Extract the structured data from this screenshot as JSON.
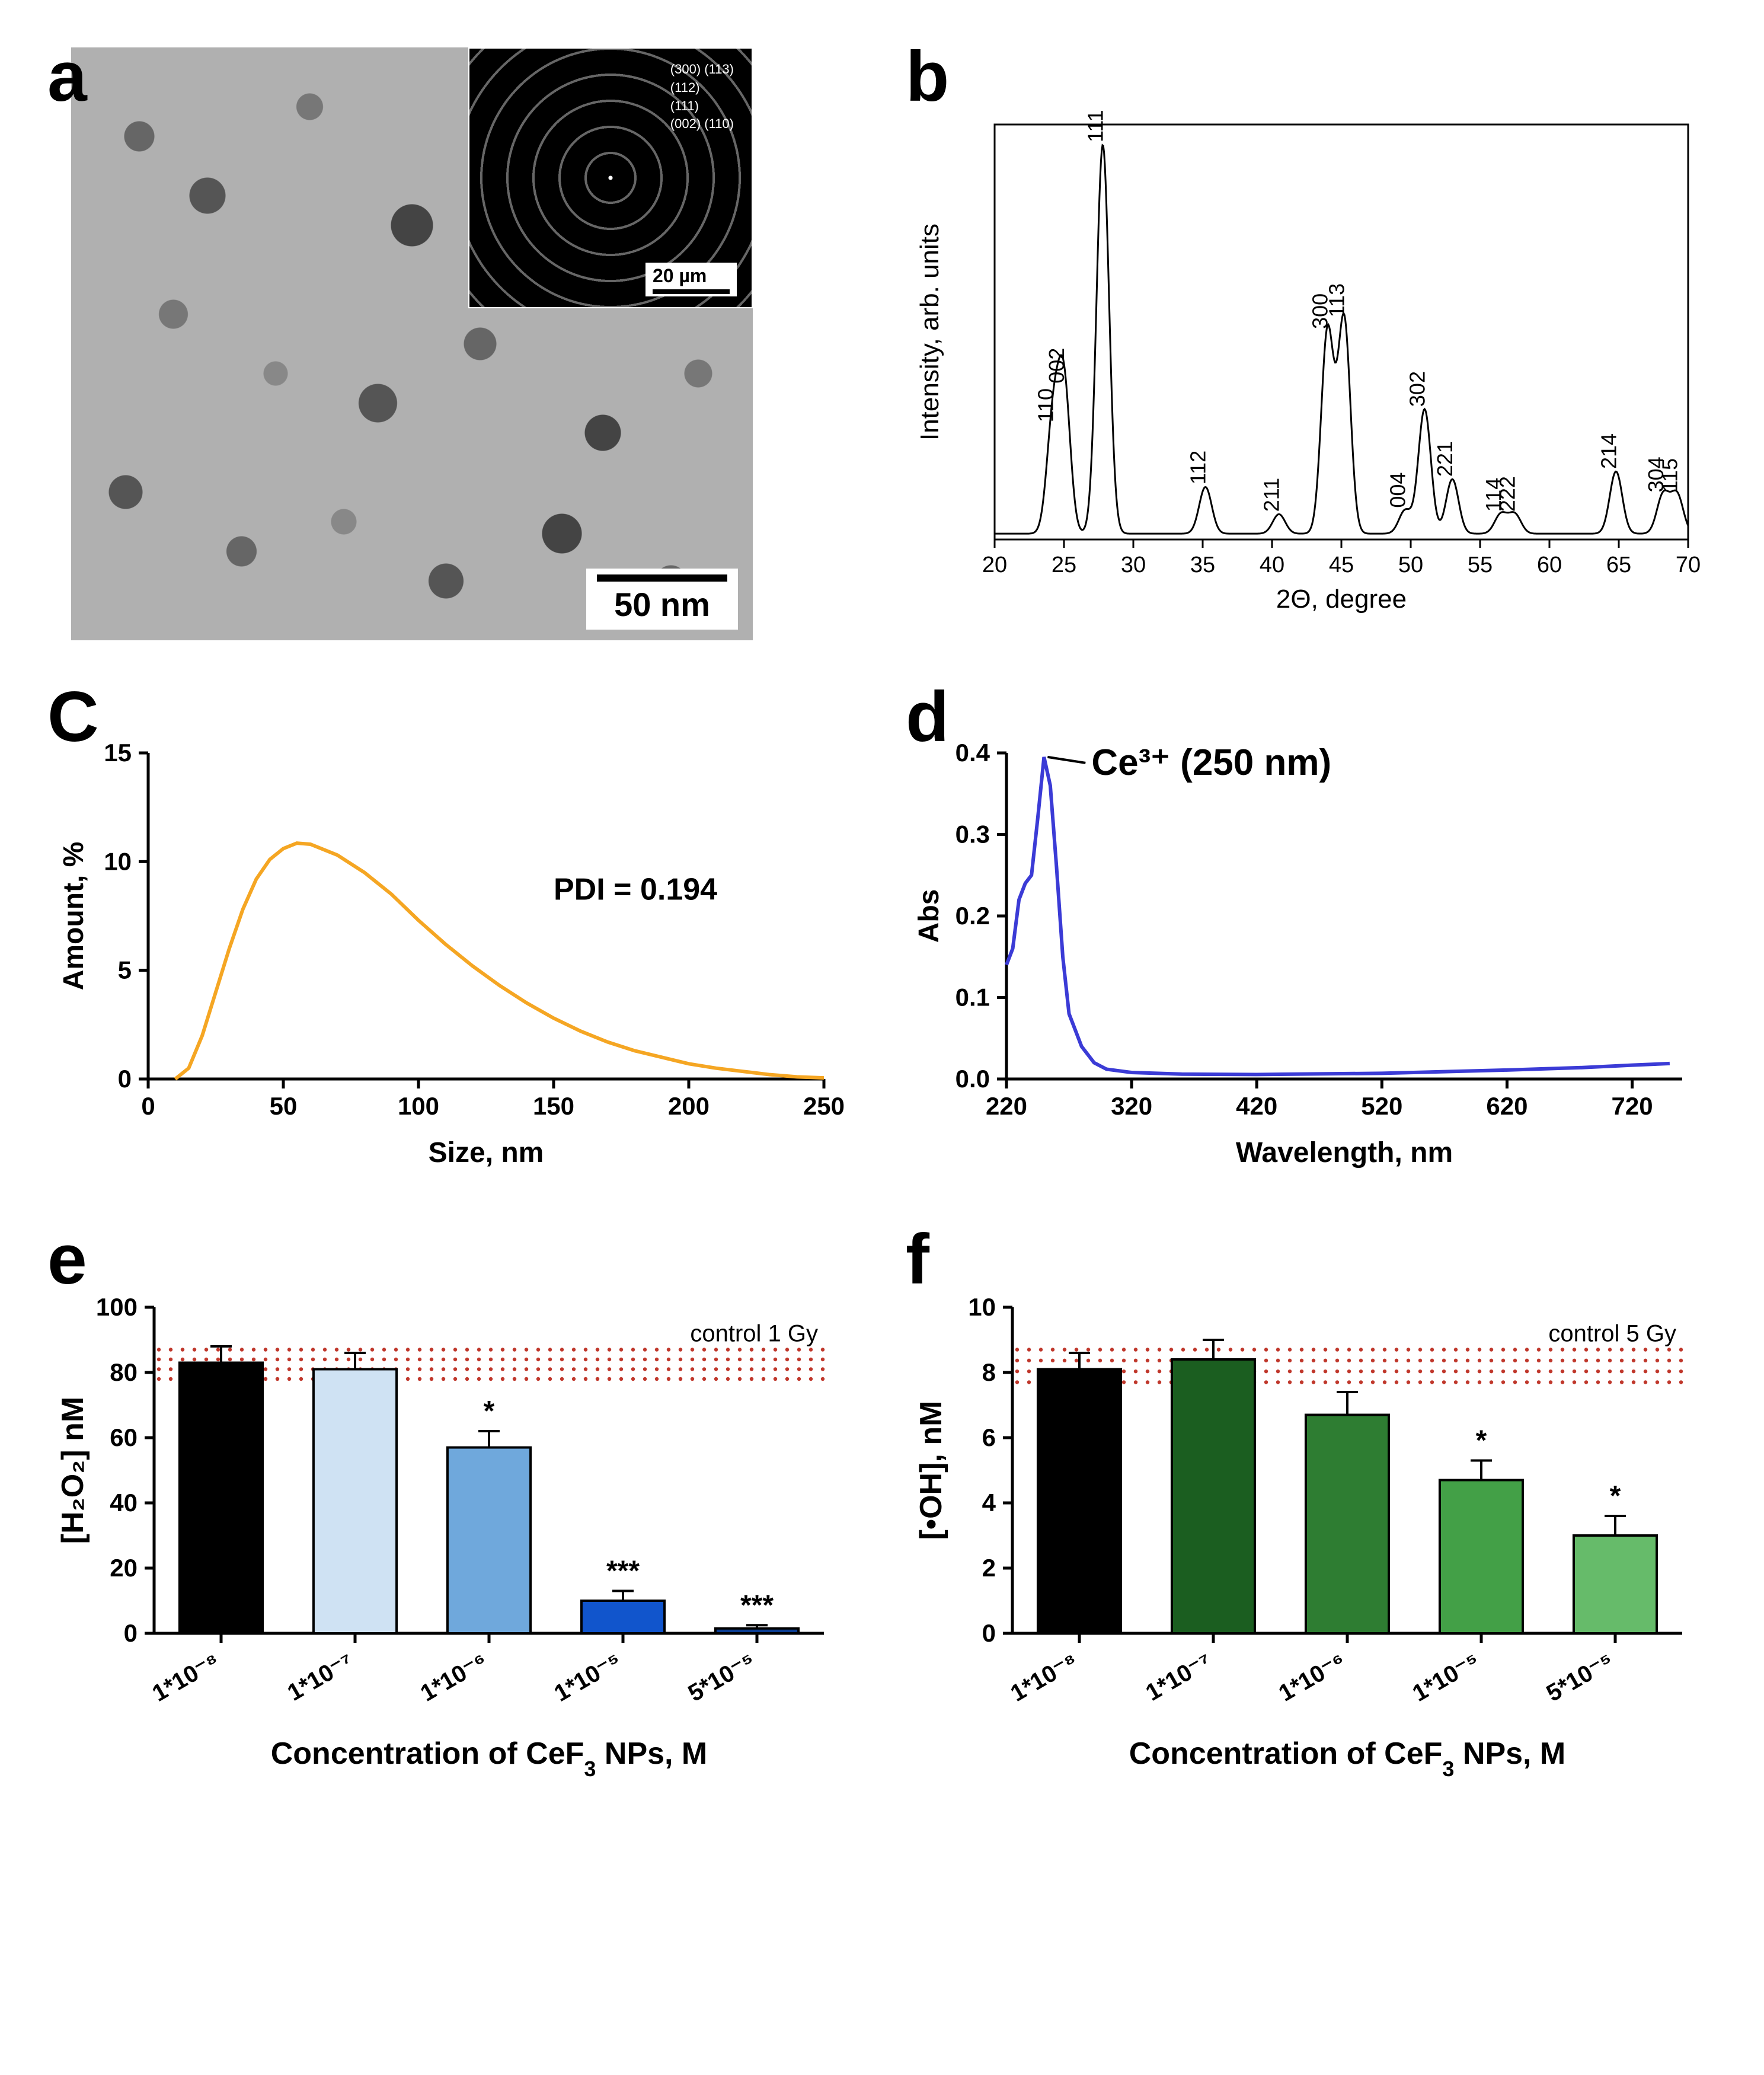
{
  "panels": {
    "a": {
      "label": "a",
      "scalebar_main": "50 nm",
      "scalebar_inset": "20 µm",
      "inset_indices": [
        "(300) (113)",
        "(112)",
        "(111)",
        "(002) (110)"
      ]
    },
    "b": {
      "label": "b",
      "type": "xrd",
      "xlabel": "2Θ, degree",
      "ylabel": "Intensity, arb. units",
      "xlim": [
        20,
        70
      ],
      "xticks": [
        20,
        25,
        30,
        35,
        40,
        45,
        50,
        55,
        60,
        65,
        70
      ],
      "line_color": "#000000",
      "line_width": 3,
      "background": "#ffffff",
      "label_fontsize": 44,
      "tick_fontsize": 38,
      "peak_label_fontsize": 36,
      "peaks": [
        {
          "x": 24.2,
          "h": 0.28,
          "label": "110"
        },
        {
          "x": 25.0,
          "h": 0.38,
          "label": "002"
        },
        {
          "x": 27.8,
          "h": 1.0,
          "label": "111"
        },
        {
          "x": 35.2,
          "h": 0.12,
          "label": "112"
        },
        {
          "x": 40.5,
          "h": 0.05,
          "label": "211"
        },
        {
          "x": 44.0,
          "h": 0.52,
          "label": "300"
        },
        {
          "x": 45.2,
          "h": 0.55,
          "label": "113"
        },
        {
          "x": 49.6,
          "h": 0.06,
          "label": "004"
        },
        {
          "x": 51.0,
          "h": 0.32,
          "label": "302"
        },
        {
          "x": 53.0,
          "h": 0.14,
          "label": "221"
        },
        {
          "x": 56.5,
          "h": 0.05,
          "label": "114"
        },
        {
          "x": 57.5,
          "h": 0.05,
          "label": "222"
        },
        {
          "x": 64.8,
          "h": 0.16,
          "label": "214"
        },
        {
          "x": 68.2,
          "h": 0.1,
          "label": "304"
        },
        {
          "x": 69.2,
          "h": 0.1,
          "label": "115"
        }
      ]
    },
    "c": {
      "label": "C",
      "type": "line",
      "xlabel": "Size, nm",
      "ylabel": "Amount, %",
      "annotation": "PDI = 0.194",
      "xlim": [
        0,
        250
      ],
      "ylim": [
        0,
        15
      ],
      "xticks": [
        0,
        50,
        100,
        150,
        200,
        250
      ],
      "yticks": [
        0,
        5,
        10,
        15
      ],
      "line_color": "#f5a623",
      "line_width": 6,
      "label_fontsize": 48,
      "tick_fontsize": 42,
      "annotation_fontsize": 52,
      "points": [
        [
          10,
          0
        ],
        [
          15,
          0.5
        ],
        [
          20,
          2
        ],
        [
          25,
          4
        ],
        [
          30,
          6
        ],
        [
          35,
          7.8
        ],
        [
          40,
          9.2
        ],
        [
          45,
          10.1
        ],
        [
          50,
          10.6
        ],
        [
          55,
          10.85
        ],
        [
          60,
          10.8
        ],
        [
          70,
          10.3
        ],
        [
          80,
          9.5
        ],
        [
          90,
          8.5
        ],
        [
          100,
          7.3
        ],
        [
          110,
          6.2
        ],
        [
          120,
          5.2
        ],
        [
          130,
          4.3
        ],
        [
          140,
          3.5
        ],
        [
          150,
          2.8
        ],
        [
          160,
          2.2
        ],
        [
          170,
          1.7
        ],
        [
          180,
          1.3
        ],
        [
          190,
          1.0
        ],
        [
          200,
          0.7
        ],
        [
          210,
          0.5
        ],
        [
          220,
          0.35
        ],
        [
          230,
          0.2
        ],
        [
          240,
          0.1
        ],
        [
          250,
          0.05
        ]
      ]
    },
    "d": {
      "label": "d",
      "type": "line",
      "xlabel": "Wavelength, nm",
      "ylabel": "Abs",
      "annotation": "Ce³⁺  (250 nm)",
      "xlim": [
        220,
        760
      ],
      "ylim": [
        0,
        0.4
      ],
      "xticks": [
        220,
        320,
        420,
        520,
        620,
        720
      ],
      "yticks": [
        0.0,
        0.1,
        0.2,
        0.3,
        0.4
      ],
      "line_color": "#3b3bd6",
      "line_width": 6,
      "label_fontsize": 48,
      "tick_fontsize": 42,
      "annotation_fontsize": 62,
      "points": [
        [
          220,
          0.14
        ],
        [
          225,
          0.16
        ],
        [
          230,
          0.22
        ],
        [
          235,
          0.24
        ],
        [
          240,
          0.25
        ],
        [
          245,
          0.32
        ],
        [
          250,
          0.395
        ],
        [
          255,
          0.36
        ],
        [
          260,
          0.26
        ],
        [
          265,
          0.15
        ],
        [
          270,
          0.08
        ],
        [
          280,
          0.04
        ],
        [
          290,
          0.02
        ],
        [
          300,
          0.012
        ],
        [
          320,
          0.008
        ],
        [
          360,
          0.006
        ],
        [
          420,
          0.0055
        ],
        [
          520,
          0.007
        ],
        [
          620,
          0.011
        ],
        [
          680,
          0.014
        ],
        [
          720,
          0.017
        ],
        [
          750,
          0.019
        ]
      ]
    },
    "e": {
      "label": "e",
      "type": "bar",
      "xlabel": "Concentration of CeF₃ NPs, M",
      "ylabel": "[H₂O₂] nM",
      "control_label": "control 1 Gy",
      "control_band": [
        78,
        87
      ],
      "ylim": [
        0,
        100
      ],
      "yticks": [
        0,
        20,
        40,
        60,
        80,
        100
      ],
      "categories": [
        "1*10⁻⁸",
        "1*10⁻⁷",
        "1*10⁻⁶",
        "1*10⁻⁵",
        "5*10⁻⁵"
      ],
      "values": [
        83,
        81,
        57,
        10,
        1.5
      ],
      "errors": [
        5,
        5,
        5,
        3,
        1
      ],
      "sig": [
        "",
        "",
        "*",
        "***",
        "***"
      ],
      "bar_colors": [
        "#000000",
        "#cfe2f3",
        "#6fa8dc",
        "#1155cc",
        "#0b3d91"
      ],
      "bar_stroke": "#000000",
      "label_fontsize": 52,
      "tick_fontsize": 42,
      "cat_fontsize": 40,
      "sig_fontsize": 48,
      "dot_color": "#c0372b"
    },
    "f": {
      "label": "f",
      "type": "bar",
      "xlabel": "Concentration of CeF₃ NPs, M",
      "ylabel": "[•OH], nM",
      "control_label": "control 5 Gy",
      "control_band": [
        7.7,
        8.7
      ],
      "ylim": [
        0,
        10
      ],
      "yticks": [
        0,
        2,
        4,
        6,
        8,
        10
      ],
      "categories": [
        "1*10⁻⁸",
        "1*10⁻⁷",
        "1*10⁻⁶",
        "1*10⁻⁵",
        "5*10⁻⁵"
      ],
      "values": [
        8.1,
        8.4,
        6.7,
        4.7,
        3.0
      ],
      "errors": [
        0.5,
        0.6,
        0.7,
        0.6,
        0.6
      ],
      "sig": [
        "",
        "",
        "",
        "*",
        "*"
      ],
      "bar_colors": [
        "#000000",
        "#1b5e20",
        "#2e7d32",
        "#43a047",
        "#66bb6a"
      ],
      "bar_stroke": "#000000",
      "label_fontsize": 52,
      "tick_fontsize": 42,
      "cat_fontsize": 40,
      "sig_fontsize": 48,
      "dot_color": "#c0372b"
    }
  }
}
